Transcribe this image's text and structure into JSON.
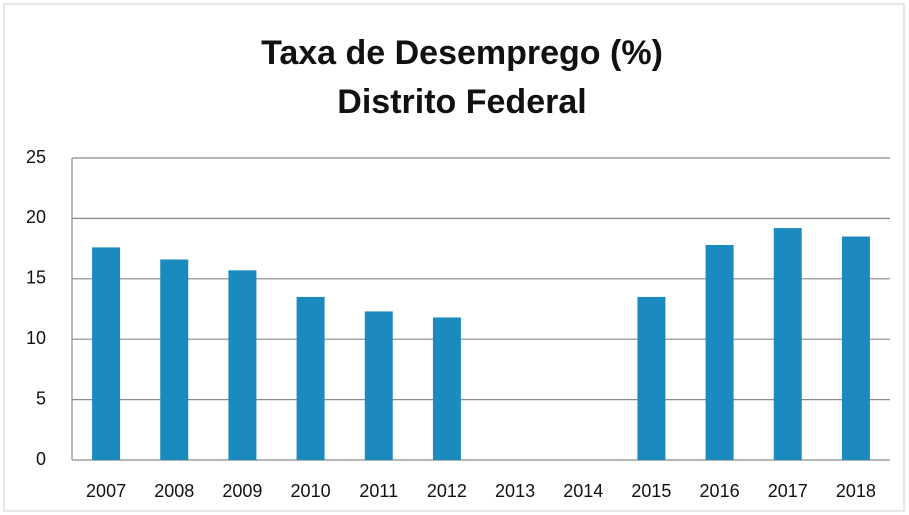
{
  "chart_data": {
    "type": "bar",
    "title": "Taxa de Desemprego (%)",
    "subtitle": "Distrito Federal",
    "categories": [
      "2007",
      "2008",
      "2009",
      "2010",
      "2011",
      "2012",
      "2013",
      "2014",
      "2015",
      "2016",
      "2017",
      "2018"
    ],
    "values": [
      17.6,
      16.6,
      15.7,
      13.5,
      12.3,
      11.8,
      null,
      null,
      13.5,
      17.8,
      19.2,
      18.5
    ],
    "color": "#1b8bbf",
    "ylim": [
      0,
      25
    ],
    "yticks": [
      0,
      5,
      10,
      15,
      20,
      25
    ],
    "grid": true
  }
}
